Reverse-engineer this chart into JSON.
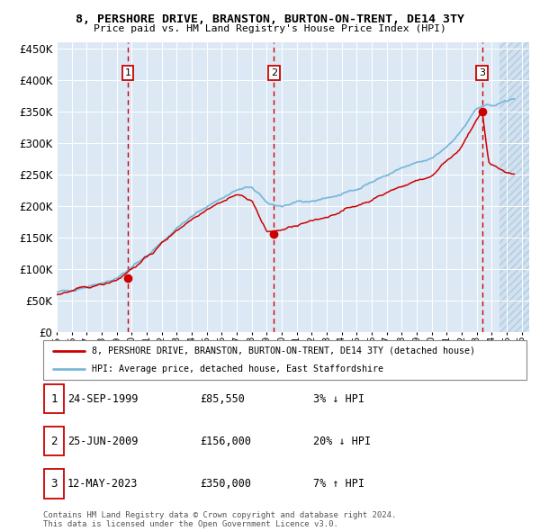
{
  "title": "8, PERSHORE DRIVE, BRANSTON, BURTON-ON-TRENT, DE14 3TY",
  "subtitle": "Price paid vs. HM Land Registry's House Price Index (HPI)",
  "legend_line1": "8, PERSHORE DRIVE, BRANSTON, BURTON-ON-TRENT, DE14 3TY (detached house)",
  "legend_line2": "HPI: Average price, detached house, East Staffordshire",
  "footer1": "Contains HM Land Registry data © Crown copyright and database right 2024.",
  "footer2": "This data is licensed under the Open Government Licence v3.0.",
  "sales": [
    {
      "num": 1,
      "date": "24-SEP-1999",
      "price": 85550,
      "pct": "3%",
      "dir": "↓",
      "year_x": 1999.73
    },
    {
      "num": 2,
      "date": "25-JUN-2009",
      "price": 156000,
      "pct": "20%",
      "dir": "↓",
      "year_x": 2009.48
    },
    {
      "num": 3,
      "date": "12-MAY-2023",
      "price": 350000,
      "pct": "7%",
      "dir": "↑",
      "year_x": 2023.36
    }
  ],
  "hpi_color": "#7ab8d9",
  "sale_color": "#cc0000",
  "bg_color": "#dce9f5",
  "ylim": [
    0,
    460000
  ],
  "xlim_start": 1995.0,
  "xlim_end": 2026.5,
  "hatch_start": 2024.5,
  "yticks": [
    0,
    50000,
    100000,
    150000,
    200000,
    250000,
    300000,
    350000,
    400000,
    450000
  ],
  "xticks": [
    1995,
    1996,
    1997,
    1998,
    1999,
    2000,
    2001,
    2002,
    2003,
    2004,
    2005,
    2006,
    2007,
    2008,
    2009,
    2010,
    2011,
    2012,
    2013,
    2014,
    2015,
    2016,
    2017,
    2018,
    2019,
    2020,
    2021,
    2022,
    2023,
    2024,
    2025,
    2026
  ]
}
